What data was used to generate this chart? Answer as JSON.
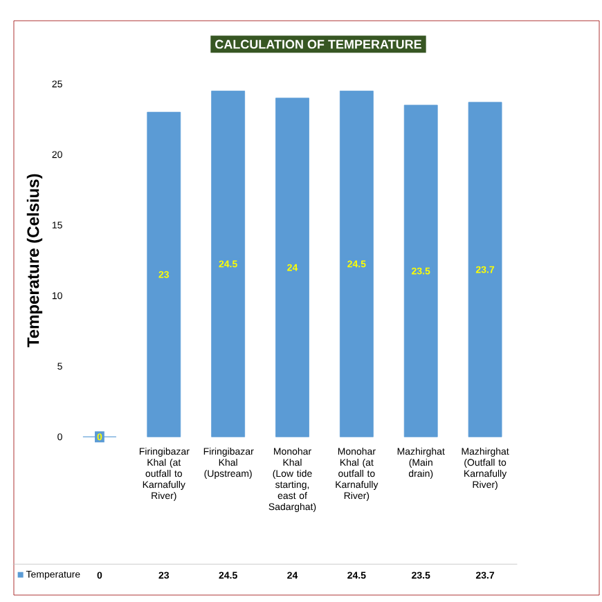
{
  "chart_data": {
    "type": "bar",
    "title": "CALCULATION OF TEMPERATURE",
    "ylabel": "Temperature  (Celsius)",
    "categories": [
      null,
      "Firingibazar Khal (at outfall to Karnafully River)",
      "Firingibazar Khal (Upstream)",
      "Monohar Khal (Low tide starting, east of Sadarghat)",
      "Monohar Khal (at outfall to Karnafully River)",
      "Mazhirghat (Main drain)",
      "Mazhirghat (Outfall to Karnafully River)"
    ],
    "series": [
      {
        "name": "Temperature",
        "color": "#5b9bd5",
        "values": [
          0,
          23,
          24.5,
          24,
          24.5,
          23.5,
          23.7
        ],
        "value_labels": [
          "0",
          "23",
          "24.5",
          "24",
          "24.5",
          "23.5",
          "23.7"
        ]
      }
    ],
    "ylim": [
      0,
      25
    ],
    "yticks": [
      0,
      5,
      10,
      15,
      20,
      25
    ],
    "data_labels": true,
    "legend": "bottom left"
  }
}
